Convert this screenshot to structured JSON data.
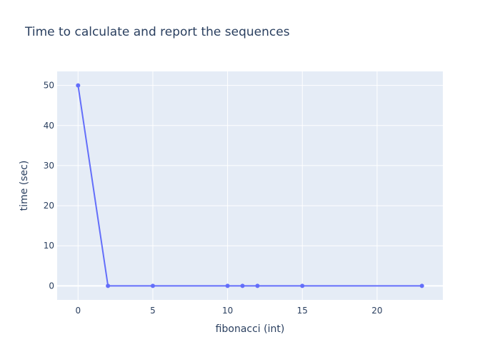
{
  "chart_data": {
    "type": "line",
    "title": "Time to calculate and report the sequences",
    "xlabel": "fibonacci (int)",
    "ylabel": "time (sec)",
    "x": [
      0,
      2,
      5,
      10,
      11,
      12,
      15,
      23
    ],
    "series": [
      {
        "values": [
          50,
          0,
          0,
          0,
          0,
          0,
          0,
          0
        ]
      }
    ],
    "xlim": [
      -1.4,
      24.4
    ],
    "ylim": [
      -3.5,
      53.5
    ],
    "xticks": [
      0,
      5,
      10,
      15,
      20
    ],
    "yticks": [
      0,
      10,
      20,
      30,
      40,
      50
    ],
    "grid": true,
    "mode": "lines+markers"
  },
  "colors": {
    "plot_bg": "#e5ecf6",
    "grid": "#ffffff",
    "line": "#636efa",
    "text": "#2a3f5f"
  }
}
